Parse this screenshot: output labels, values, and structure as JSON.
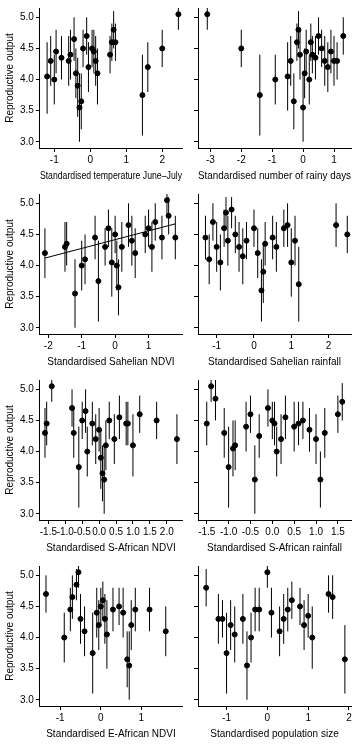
{
  "chart_data": [
    {
      "type": "scatter",
      "x_label": "Standardised temperature June–July",
      "y_label": "Reproductive output",
      "color": "#000000",
      "marker": "circle",
      "grid": false,
      "xlim": [
        -1.4,
        2.55
      ],
      "xticks": [
        -1,
        0,
        1,
        2
      ],
      "ylim": [
        2.9,
        5.15
      ],
      "yticks": [
        {
          "value": 3,
          "label": "3.0"
        },
        {
          "value": 3.5,
          "label": "3.5"
        },
        {
          "value": 4,
          "label": "4.0"
        },
        {
          "value": 4.5,
          "label": "4.5"
        },
        {
          "value": 5,
          "label": "5.0"
        }
      ],
      "x": [
        -1.2,
        -1.1,
        -1.0,
        -0.95,
        -0.8,
        -0.6,
        -0.55,
        -0.45,
        -0.4,
        -0.35,
        -0.3,
        -0.25,
        -0.2,
        -0.1,
        -0.05,
        0.05,
        0.1,
        0.15,
        0.2,
        0.55,
        0.6,
        0.65,
        0.7,
        1.45,
        1.6,
        2.0,
        2.45
      ],
      "values": [
        4.05,
        4.3,
        4.0,
        4.45,
        4.35,
        4.3,
        4.4,
        4.65,
        4.1,
        3.9,
        3.55,
        3.65,
        4.5,
        4.7,
        4.2,
        4.5,
        4.45,
        4.3,
        4.1,
        4.4,
        4.6,
        4.8,
        4.6,
        3.75,
        4.2,
        4.5,
        5.05
      ],
      "error_low": [
        3.45,
        3.9,
        3.6,
        4.1,
        4.0,
        3.9,
        4.0,
        4.3,
        3.7,
        3.4,
        3.0,
        3.2,
        4.2,
        4.4,
        3.8,
        4.2,
        4.1,
        3.9,
        3.6,
        4.1,
        4.3,
        4.5,
        4.3,
        3.1,
        3.8,
        4.2,
        4.8
      ],
      "error_high": [
        4.6,
        4.7,
        4.4,
        4.8,
        4.7,
        4.7,
        4.8,
        5.0,
        4.5,
        4.35,
        4.1,
        4.1,
        4.8,
        5.0,
        4.6,
        4.8,
        4.8,
        4.7,
        4.5,
        4.7,
        4.9,
        5.1,
        4.9,
        4.4,
        4.6,
        4.8,
        5.25
      ]
    },
    {
      "type": "scatter",
      "x_label": "Standardised number of rainy days",
      "color": "#000000",
      "marker": "circle",
      "grid": false,
      "tick_labels": "x",
      "xlim": [
        -3.4,
        1.55
      ],
      "xticks": [
        -3,
        -2,
        -1,
        0,
        1
      ],
      "ylim": [
        2.9,
        5.15
      ],
      "yticks": [
        {
          "value": 3,
          "label": "3.0"
        },
        {
          "value": 3.5,
          "label": "3.5"
        },
        {
          "value": 4,
          "label": "4.0"
        },
        {
          "value": 4.5,
          "label": "4.5"
        },
        {
          "value": 5,
          "label": "5.0"
        }
      ],
      "x": [
        -3.1,
        -2.0,
        -1.4,
        -0.9,
        -0.5,
        -0.4,
        -0.3,
        -0.2,
        -0.15,
        -0.1,
        0.0,
        0.05,
        0.1,
        0.2,
        0.25,
        0.3,
        0.4,
        0.5,
        0.6,
        0.7,
        0.8,
        0.9,
        1.0,
        1.1,
        1.3
      ],
      "values": [
        5.05,
        4.5,
        3.75,
        4.0,
        4.05,
        4.3,
        3.65,
        4.6,
        4.8,
        4.4,
        3.55,
        4.1,
        4.45,
        4.0,
        4.6,
        4.4,
        4.35,
        4.7,
        4.5,
        4.3,
        4.2,
        4.45,
        4.3,
        4.3,
        4.7
      ],
      "error_low": [
        4.8,
        4.2,
        3.1,
        3.6,
        3.5,
        3.9,
        3.2,
        4.3,
        4.5,
        4.0,
        3.0,
        3.7,
        4.1,
        3.6,
        4.3,
        4.1,
        4.0,
        4.4,
        4.2,
        3.9,
        3.8,
        4.1,
        3.9,
        4.0,
        4.4
      ],
      "error_high": [
        5.25,
        4.8,
        4.4,
        4.4,
        4.6,
        4.7,
        4.1,
        4.9,
        5.1,
        4.8,
        4.1,
        4.5,
        4.8,
        4.4,
        4.9,
        4.7,
        4.7,
        5.0,
        4.8,
        4.7,
        4.6,
        4.8,
        4.7,
        4.6,
        5.0
      ]
    },
    {
      "type": "scatter",
      "x_label": "Standardised Sahelian NDVI",
      "y_label": "Reproductive output",
      "color": "#000000",
      "marker": "circle",
      "grid": false,
      "xlim": [
        -2.25,
        2.0
      ],
      "xticks": [
        -2,
        -1,
        0,
        1
      ],
      "ylim": [
        2.9,
        5.15
      ],
      "yticks": [
        {
          "value": 3,
          "label": "3.0"
        },
        {
          "value": 3.5,
          "label": "3.5"
        },
        {
          "value": 4,
          "label": "4.0"
        },
        {
          "value": 4.5,
          "label": "4.5"
        },
        {
          "value": 5,
          "label": "5.0"
        }
      ],
      "trend": {
        "x": [
          -2.1,
          1.8
        ],
        "values": [
          4.12,
          4.67
        ]
      },
      "x": [
        -2.1,
        -1.5,
        -1.45,
        -1.2,
        -1.0,
        -0.9,
        -0.6,
        -0.5,
        -0.3,
        -0.2,
        -0.1,
        0.0,
        0.05,
        0.1,
        0.2,
        0.4,
        0.5,
        0.6,
        0.9,
        1.0,
        1.1,
        1.2,
        1.4,
        1.55,
        1.6,
        1.8
      ],
      "values": [
        4.2,
        4.3,
        4.35,
        3.55,
        4.0,
        4.1,
        4.45,
        3.75,
        4.3,
        4.6,
        4.05,
        4.5,
        4.0,
        3.65,
        4.3,
        4.65,
        4.4,
        4.2,
        4.5,
        4.6,
        4.3,
        4.7,
        4.45,
        5.05,
        4.8,
        4.45
      ],
      "error_low": [
        3.8,
        3.9,
        4.0,
        3.0,
        3.6,
        3.7,
        4.1,
        3.1,
        4.0,
        4.3,
        3.5,
        4.2,
        3.6,
        3.2,
        3.9,
        4.3,
        4.0,
        3.8,
        4.2,
        4.3,
        3.9,
        4.4,
        4.1,
        4.8,
        4.5,
        4.1
      ],
      "error_high": [
        4.6,
        4.7,
        4.7,
        4.1,
        4.4,
        4.5,
        4.8,
        4.4,
        4.6,
        4.9,
        4.6,
        4.8,
        4.4,
        4.1,
        4.7,
        5.0,
        4.8,
        4.6,
        4.8,
        4.9,
        4.7,
        5.0,
        4.8,
        5.25,
        5.1,
        4.8
      ]
    },
    {
      "type": "scatter",
      "x_label": "Standardised Sahelian rainfall",
      "color": "#000000",
      "marker": "circle",
      "grid": false,
      "tick_labels": "x",
      "xlim": [
        -1.5,
        2.6
      ],
      "xticks": [
        -1,
        0,
        1,
        2
      ],
      "ylim": [
        2.9,
        5.15
      ],
      "yticks": [
        {
          "value": 3,
          "label": "3.0"
        },
        {
          "value": 3.5,
          "label": "3.5"
        },
        {
          "value": 4,
          "label": "4.0"
        },
        {
          "value": 4.5,
          "label": "4.5"
        },
        {
          "value": 5,
          "label": "5.0"
        }
      ],
      "x": [
        -1.3,
        -1.2,
        -1.1,
        -1.0,
        -0.9,
        -0.8,
        -0.75,
        -0.7,
        -0.6,
        -0.5,
        -0.4,
        -0.3,
        -0.2,
        0.0,
        0.1,
        0.2,
        0.25,
        0.3,
        0.5,
        0.6,
        0.8,
        0.9,
        1.0,
        1.1,
        1.2,
        2.2,
        2.5
      ],
      "values": [
        4.45,
        4.1,
        4.7,
        4.3,
        4.05,
        4.6,
        4.85,
        4.4,
        4.9,
        4.5,
        4.3,
        4.15,
        4.4,
        4.6,
        4.2,
        3.6,
        3.9,
        4.35,
        4.45,
        4.3,
        4.6,
        4.65,
        4.05,
        4.4,
        3.7,
        4.65,
        4.5
      ],
      "error_low": [
        4.1,
        3.7,
        4.4,
        3.9,
        3.6,
        4.3,
        4.6,
        4.0,
        4.6,
        4.2,
        3.9,
        3.7,
        4.1,
        4.3,
        3.8,
        3.1,
        3.4,
        4.0,
        4.1,
        3.9,
        4.3,
        4.3,
        3.5,
        4.0,
        3.1,
        4.3,
        4.2
      ],
      "error_high": [
        4.8,
        4.5,
        5.0,
        4.7,
        4.5,
        4.9,
        5.1,
        4.8,
        5.1,
        4.8,
        4.7,
        4.6,
        4.7,
        4.9,
        4.6,
        4.1,
        4.35,
        4.7,
        4.8,
        4.7,
        4.9,
        5.0,
        4.6,
        4.8,
        4.3,
        5.0,
        4.8
      ]
    },
    {
      "type": "scatter",
      "x_label": "Standardised S-African NDVI",
      "y_label": "Reproductive output",
      "color": "#000000",
      "marker": "circle",
      "grid": false,
      "xlim": [
        -1.75,
        2.45
      ],
      "xticks": [
        -1.5,
        {
          "value": -1,
          "label": "-1.0"
        },
        -0.5,
        {
          "value": 0,
          "label": "0.0"
        },
        0.5,
        {
          "value": 1,
          "label": "1.0"
        },
        1.5,
        {
          "value": 2,
          "label": "2.0"
        }
      ],
      "ylim": [
        2.9,
        5.15
      ],
      "yticks": [
        {
          "value": 3,
          "label": "3.0"
        },
        {
          "value": 3.5,
          "label": "3.5"
        },
        {
          "value": 4,
          "label": "4.0"
        },
        {
          "value": 4.5,
          "label": "4.5"
        },
        {
          "value": 5,
          "label": "5.0"
        }
      ],
      "x": [
        -1.6,
        -1.55,
        -1.4,
        -0.8,
        -0.75,
        -0.6,
        -0.5,
        -0.4,
        -0.35,
        -0.2,
        -0.1,
        0.0,
        0.05,
        0.1,
        0.15,
        0.2,
        0.3,
        0.45,
        0.6,
        0.8,
        0.85,
        1.0,
        1.2,
        1.7,
        2.3
      ],
      "values": [
        4.3,
        4.45,
        5.05,
        4.7,
        4.3,
        3.75,
        4.5,
        4.65,
        4.0,
        4.45,
        4.2,
        4.35,
        3.9,
        3.65,
        3.55,
        4.1,
        4.5,
        4.2,
        4.55,
        4.45,
        4.45,
        4.1,
        4.6,
        4.5,
        4.2
      ],
      "error_low": [
        3.9,
        4.1,
        4.8,
        4.4,
        3.9,
        3.1,
        4.2,
        4.3,
        3.6,
        4.1,
        3.8,
        4.0,
        3.4,
        3.2,
        3.0,
        3.7,
        4.2,
        3.8,
        4.2,
        4.1,
        4.1,
        3.6,
        4.3,
        4.2,
        3.8
      ],
      "error_high": [
        4.7,
        4.8,
        5.25,
        5.0,
        4.7,
        4.4,
        4.8,
        5.0,
        4.4,
        4.8,
        4.6,
        4.7,
        4.35,
        4.1,
        4.1,
        4.5,
        4.8,
        4.6,
        4.9,
        4.8,
        4.8,
        4.6,
        4.9,
        4.8,
        4.6
      ]
    },
    {
      "type": "scatter",
      "x_label": "Standardised S-African rainfall",
      "color": "#000000",
      "marker": "circle",
      "grid": false,
      "tick_labels": "x",
      "xlim": [
        -1.7,
        1.8
      ],
      "xticks": [
        -1.5,
        {
          "value": -1,
          "label": "-1.0"
        },
        -0.5,
        {
          "value": 0,
          "label": "0.0"
        },
        0.5,
        {
          "value": 1,
          "label": "1.0"
        },
        1.5
      ],
      "ylim": [
        2.9,
        5.15
      ],
      "yticks": [
        {
          "value": 3,
          "label": "3.0"
        },
        {
          "value": 3.5,
          "label": "3.5"
        },
        {
          "value": 4,
          "label": "4.0"
        },
        {
          "value": 4.5,
          "label": "4.5"
        },
        {
          "value": 5,
          "label": "5.0"
        }
      ],
      "x": [
        -1.5,
        -1.4,
        -1.3,
        -1.1,
        -1.0,
        -0.9,
        -0.85,
        -0.6,
        -0.5,
        -0.4,
        -0.3,
        -0.1,
        0.0,
        0.05,
        0.1,
        0.2,
        0.3,
        0.5,
        0.6,
        0.7,
        0.85,
        1.0,
        1.1,
        1.2,
        1.5,
        1.6
      ],
      "values": [
        4.45,
        5.05,
        4.85,
        4.3,
        3.75,
        4.05,
        4.1,
        4.4,
        4.6,
        3.55,
        4.25,
        4.7,
        4.5,
        4.45,
        4.0,
        4.2,
        4.55,
        4.4,
        4.45,
        4.5,
        4.35,
        4.2,
        3.55,
        4.3,
        4.6,
        4.8
      ],
      "error_low": [
        4.1,
        4.8,
        4.5,
        3.9,
        3.1,
        3.6,
        3.7,
        4.0,
        4.3,
        3.0,
        3.9,
        4.4,
        4.2,
        4.1,
        3.6,
        3.8,
        4.2,
        4.0,
        4.1,
        4.2,
        4.0,
        3.8,
        3.1,
        3.9,
        4.3,
        4.5
      ],
      "error_high": [
        4.8,
        5.25,
        5.15,
        4.7,
        4.4,
        4.5,
        4.5,
        4.8,
        4.9,
        4.1,
        4.6,
        5.0,
        4.8,
        4.8,
        4.4,
        4.6,
        4.9,
        4.8,
        4.8,
        4.8,
        4.7,
        4.6,
        4.0,
        4.7,
        4.9,
        5.1
      ]
    },
    {
      "type": "scatter",
      "x_label": "Standardised E-African NDVI",
      "y_label": "Reproductive output",
      "color": "#000000",
      "marker": "circle",
      "grid": false,
      "xlim": [
        -1.5,
        2.0
      ],
      "xticks": [
        -1,
        0,
        1
      ],
      "ylim": [
        2.9,
        5.15
      ],
      "yticks": [
        {
          "value": 3,
          "label": "3.0"
        },
        {
          "value": 3.5,
          "label": "3.5"
        },
        {
          "value": 4,
          "label": "4.0"
        },
        {
          "value": 4.5,
          "label": "4.5"
        },
        {
          "value": 5,
          "label": "5.0"
        }
      ],
      "x": [
        -1.35,
        -0.9,
        -0.75,
        -0.7,
        -0.6,
        -0.55,
        -0.5,
        -0.4,
        -0.2,
        -0.1,
        -0.05,
        0.0,
        0.05,
        0.1,
        0.15,
        0.3,
        0.45,
        0.55,
        0.65,
        0.7,
        0.75,
        0.85,
        1.2,
        1.6
      ],
      "values": [
        4.7,
        4.0,
        4.45,
        4.65,
        4.85,
        5.05,
        4.3,
        4.1,
        3.75,
        4.4,
        4.2,
        4.5,
        4.6,
        4.3,
        4.05,
        4.45,
        4.5,
        4.4,
        3.65,
        3.55,
        4.2,
        4.45,
        4.45,
        4.1
      ],
      "error_low": [
        4.4,
        3.6,
        4.1,
        4.3,
        4.6,
        4.8,
        3.9,
        3.7,
        3.1,
        4.0,
        3.8,
        4.2,
        4.3,
        3.9,
        3.5,
        4.1,
        4.2,
        4.0,
        3.2,
        3.0,
        3.8,
        4.1,
        4.1,
        3.7
      ],
      "error_high": [
        5.0,
        4.4,
        4.8,
        5.0,
        5.1,
        5.25,
        4.7,
        4.5,
        4.4,
        4.8,
        4.6,
        4.8,
        4.9,
        4.7,
        4.6,
        4.8,
        4.8,
        4.8,
        4.1,
        4.1,
        4.6,
        4.8,
        4.8,
        4.5
      ]
    },
    {
      "type": "scatter",
      "x_label": "Standardised population size",
      "color": "#000000",
      "marker": "circle",
      "grid": false,
      "tick_labels": "x",
      "xlim": [
        -1.7,
        2.05
      ],
      "xticks": [
        -1,
        0,
        1,
        2
      ],
      "ylim": [
        2.9,
        5.15
      ],
      "yticks": [
        {
          "value": 3,
          "label": "3.0"
        },
        {
          "value": 3.5,
          "label": "3.5"
        },
        {
          "value": 4,
          "label": "4.0"
        },
        {
          "value": 4.5,
          "label": "4.5"
        },
        {
          "value": 5,
          "label": "5.0"
        }
      ],
      "x": [
        -1.5,
        -1.2,
        -1.1,
        -1.0,
        -0.9,
        -0.8,
        -0.6,
        -0.5,
        -0.4,
        -0.3,
        -0.2,
        0.0,
        0.1,
        0.3,
        0.4,
        0.5,
        0.6,
        0.8,
        0.9,
        1.0,
        1.1,
        1.5,
        1.6,
        1.9
      ],
      "values": [
        4.8,
        4.3,
        4.3,
        3.75,
        4.2,
        4.05,
        4.3,
        3.55,
        4.0,
        4.45,
        4.45,
        5.05,
        4.4,
        4.1,
        4.3,
        4.45,
        4.6,
        4.5,
        4.2,
        4.35,
        4.0,
        4.7,
        4.65,
        3.65
      ],
      "error_low": [
        4.5,
        3.9,
        4.0,
        3.1,
        3.8,
        3.6,
        3.9,
        3.0,
        3.6,
        4.1,
        4.1,
        4.8,
        4.0,
        3.7,
        3.9,
        4.1,
        4.3,
        4.2,
        3.8,
        4.0,
        3.5,
        4.4,
        4.3,
        3.1
      ],
      "error_high": [
        5.1,
        4.7,
        4.6,
        4.4,
        4.6,
        4.5,
        4.7,
        4.1,
        4.4,
        4.8,
        4.8,
        5.25,
        4.8,
        4.5,
        4.7,
        4.8,
        4.9,
        4.8,
        4.6,
        4.7,
        4.5,
        5.0,
        5.0,
        4.2
      ]
    }
  ]
}
